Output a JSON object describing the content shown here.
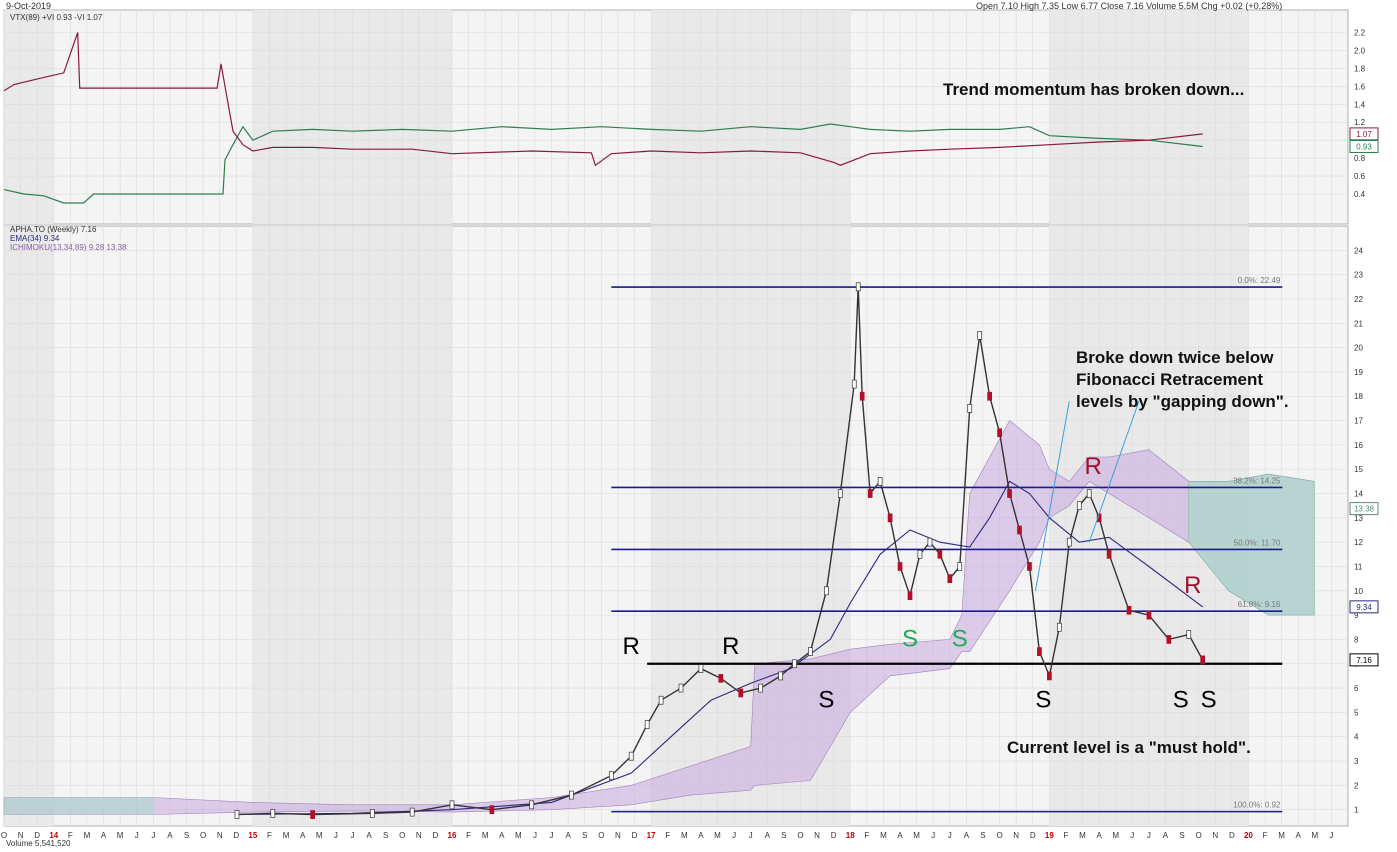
{
  "header": {
    "date": "9-Oct-2019",
    "quote": "Open 7.10  High 7.35  Low 6.77  Close 7.16  Volume 5.5M  Chg +0.02 (+0.28%)"
  },
  "vortex_legend": "VTX(89) +VI 0.93 -VI 1.07",
  "price_legend": {
    "symbol": "APHA.TO (Weekly) 7.16",
    "ema": "EMA(34) 9.34",
    "ichimoku": "ICHIMOKU(13,34,89) 9.28 13.38"
  },
  "volume_label": "Volume 5,541,520",
  "annotations": {
    "trend": "Trend momentum has broken down...",
    "broke_1": "Broke down twice below",
    "broke_2": "Fibonacci Retracement",
    "broke_3": "levels by \"gapping down\".",
    "current": "Current level is a \"must hold\"."
  },
  "chart_data": [
    {
      "type": "line",
      "name": "vortex",
      "y_ticks": [
        "2.2",
        "2.0",
        "1.8",
        "1.6",
        "1.4",
        "1.2",
        "1.0",
        "0.8",
        "0.6",
        "0.4"
      ],
      "ylim": [
        0.2,
        2.25
      ],
      "badges": [
        {
          "label": "1.07",
          "value": 1.07,
          "color": "#8b1a3a"
        },
        {
          "label": "0.93",
          "value": 0.93,
          "color": "#2e7d4f"
        }
      ],
      "series": [
        {
          "name": "+VI",
          "color": "#2e7d4f",
          "x": [
            2013.75,
            2013.85,
            2013.95,
            2014.05,
            2014.15,
            2014.2,
            2014.4,
            2014.6,
            2014.85,
            2014.86,
            2014.9,
            2014.95,
            2015.0,
            2015.1,
            2015.3,
            2015.5,
            2015.75,
            2016.0,
            2016.25,
            2016.5,
            2016.75,
            2017.0,
            2017.25,
            2017.5,
            2017.75,
            2017.9,
            2018.0,
            2018.1,
            2018.3,
            2018.5,
            2018.75,
            2018.9,
            2019.0,
            2019.25,
            2019.5,
            2019.77
          ],
          "y": [
            0.45,
            0.4,
            0.38,
            0.3,
            0.3,
            0.4,
            0.4,
            0.4,
            0.4,
            0.78,
            0.95,
            1.15,
            1.0,
            1.1,
            1.12,
            1.1,
            1.12,
            1.1,
            1.15,
            1.12,
            1.15,
            1.12,
            1.1,
            1.15,
            1.12,
            1.18,
            1.15,
            1.12,
            1.1,
            1.12,
            1.12,
            1.15,
            1.05,
            1.02,
            1.0,
            0.93
          ]
        },
        {
          "name": "-VI",
          "color": "#8b1a3a",
          "x": [
            2013.75,
            2013.8,
            2013.95,
            2014.05,
            2014.12,
            2014.13,
            2014.2,
            2014.5,
            2014.82,
            2014.84,
            2014.86,
            2014.9,
            2014.95,
            2015.0,
            2015.1,
            2015.3,
            2015.5,
            2015.8,
            2016.0,
            2016.4,
            2016.7,
            2016.72,
            2016.8,
            2017.0,
            2017.25,
            2017.5,
            2017.75,
            2017.92,
            2017.95,
            2018.1,
            2018.3,
            2018.5,
            2018.75,
            2019.0,
            2019.25,
            2019.5,
            2019.77
          ],
          "y": [
            1.55,
            1.62,
            1.7,
            1.75,
            2.2,
            1.58,
            1.58,
            1.58,
            1.58,
            1.85,
            1.6,
            1.1,
            0.95,
            0.88,
            0.92,
            0.92,
            0.9,
            0.9,
            0.85,
            0.88,
            0.86,
            0.72,
            0.85,
            0.88,
            0.86,
            0.88,
            0.86,
            0.75,
            0.72,
            0.85,
            0.88,
            0.9,
            0.92,
            0.95,
            0.98,
            1.0,
            1.07
          ]
        }
      ]
    },
    {
      "type": "line",
      "name": "price",
      "title": "APHA.TO (Weekly)",
      "y_ticks": [
        "24",
        "23",
        "22",
        "21",
        "20",
        "19",
        "18",
        "17",
        "16",
        "15",
        "14",
        "13",
        "12",
        "11",
        "10",
        "9",
        "8",
        "7",
        "6",
        "5",
        "4",
        "3",
        "2",
        "1"
      ],
      "ylim": [
        0,
        25
      ],
      "x_ticks": [
        "O",
        "N",
        "D",
        "14",
        "F",
        "M",
        "A",
        "M",
        "J",
        "J",
        "A",
        "S",
        "O",
        "N",
        "D",
        "15",
        "F",
        "M",
        "A",
        "M",
        "J",
        "J",
        "A",
        "S",
        "O",
        "N",
        "D",
        "16",
        "F",
        "M",
        "A",
        "M",
        "J",
        "J",
        "A",
        "S",
        "O",
        "N",
        "D",
        "17",
        "F",
        "M",
        "A",
        "M",
        "J",
        "J",
        "A",
        "S",
        "O",
        "N",
        "D",
        "18",
        "F",
        "M",
        "A",
        "M",
        "J",
        "J",
        "A",
        "S",
        "O",
        "N",
        "D",
        "19",
        "F",
        "M",
        "A",
        "M",
        "J",
        "J",
        "A",
        "S",
        "O",
        "N",
        "D",
        "20",
        "F",
        "M",
        "A",
        "M",
        "J"
      ],
      "x_start": 2013.75,
      "x_step": 0.08333,
      "fib_levels": [
        {
          "label": "0.0%: 22.49",
          "value": 22.49
        },
        {
          "label": "38.2%: 14.25",
          "value": 14.25
        },
        {
          "label": "50.0%: 11.70",
          "value": 11.7
        },
        {
          "label": "61.8%: 9.16",
          "value": 9.16
        },
        {
          "label": "100.0%: 0.92",
          "value": 0.92
        }
      ],
      "fib_x_range": [
        2016.8,
        2020.17
      ],
      "support_line": {
        "x": [
          2016.98,
          2020.17
        ],
        "value": 7.0
      },
      "badges": [
        {
          "label": "13.38",
          "value": 13.38,
          "color": "#5a8a7a"
        },
        {
          "label": "9.34",
          "value": 9.34,
          "color": "#2a2a80"
        },
        {
          "label": "7.16",
          "value": 7.16,
          "color": "#000000"
        }
      ],
      "series": [
        {
          "name": "APHA.TO",
          "color": "#333333",
          "x": [
            2014.92,
            2015.1,
            2015.3,
            2015.6,
            2015.8,
            2016.0,
            2016.2,
            2016.4,
            2016.6,
            2016.8,
            2016.9,
            2016.98,
            2017.05,
            2017.15,
            2017.25,
            2017.35,
            2017.45,
            2017.55,
            2017.65,
            2017.72,
            2017.8,
            2017.88,
            2017.95,
            2018.02,
            2018.04,
            2018.06,
            2018.1,
            2018.15,
            2018.2,
            2018.25,
            2018.3,
            2018.35,
            2018.4,
            2018.45,
            2018.5,
            2018.55,
            2018.6,
            2018.65,
            2018.7,
            2018.75,
            2018.8,
            2018.85,
            2018.9,
            2018.95,
            2019.0,
            2019.05,
            2019.1,
            2019.15,
            2019.2,
            2019.25,
            2019.3,
            2019.4,
            2019.5,
            2019.6,
            2019.7,
            2019.77
          ],
          "y": [
            0.8,
            0.85,
            0.8,
            0.85,
            0.9,
            1.2,
            1.0,
            1.2,
            1.6,
            2.4,
            3.2,
            4.5,
            5.5,
            6.0,
            6.8,
            6.4,
            5.8,
            6.0,
            6.5,
            7.0,
            7.5,
            10.0,
            14.0,
            18.5,
            22.5,
            18.0,
            14.0,
            14.5,
            13.0,
            11.0,
            9.8,
            11.5,
            12.0,
            11.5,
            10.5,
            11.0,
            17.5,
            20.5,
            18.0,
            16.5,
            14.0,
            12.5,
            11.0,
            7.5,
            6.5,
            8.5,
            12.0,
            13.5,
            14.0,
            13.0,
            11.5,
            9.2,
            9.0,
            8.0,
            8.2,
            7.16
          ]
        },
        {
          "name": "EMA(34)",
          "color": "#2a2a80",
          "x": [
            2014.92,
            2015.5,
            2016.0,
            2016.5,
            2016.9,
            2017.1,
            2017.3,
            2017.5,
            2017.7,
            2017.9,
            2018.0,
            2018.15,
            2018.3,
            2018.45,
            2018.6,
            2018.7,
            2018.8,
            2018.9,
            2019.0,
            2019.15,
            2019.3,
            2019.5,
            2019.77
          ],
          "y": [
            0.8,
            0.85,
            1.0,
            1.3,
            2.5,
            4.0,
            5.5,
            6.2,
            6.8,
            8.0,
            9.5,
            11.5,
            12.5,
            12.0,
            11.8,
            13.0,
            14.5,
            14.0,
            13.0,
            12.0,
            12.2,
            11.0,
            9.34
          ]
        }
      ],
      "cloud": {
        "x": [
          2013.75,
          2014.5,
          2015.0,
          2015.5,
          2016.0,
          2016.5,
          2016.9,
          2017.2,
          2017.5,
          2017.52,
          2017.8,
          2018.0,
          2018.2,
          2018.5,
          2018.56,
          2018.6,
          2018.8,
          2018.95,
          2019.0,
          2019.1,
          2019.2,
          2019.3,
          2019.5,
          2019.7,
          2019.9,
          2020.1,
          2020.33
        ],
        "upper": [
          1.5,
          1.5,
          1.3,
          1.2,
          1.2,
          1.5,
          2.0,
          2.8,
          3.6,
          7.0,
          7.2,
          7.6,
          7.8,
          8.0,
          9.0,
          14.0,
          17.0,
          16.0,
          15.0,
          14.5,
          15.5,
          15.5,
          15.8,
          14.5,
          14.5,
          14.8,
          14.5
        ],
        "lower": [
          0.8,
          0.8,
          0.9,
          0.95,
          0.9,
          1.0,
          1.2,
          1.6,
          1.8,
          2.0,
          2.2,
          5.0,
          6.5,
          6.8,
          7.5,
          7.5,
          10.0,
          12.0,
          13.0,
          13.5,
          14.5,
          14.0,
          13.0,
          12.0,
          10.0,
          9.0,
          9.0
        ]
      },
      "marks": [
        {
          "text": "R",
          "x": 2016.9,
          "y": 7.4,
          "color": "#000000"
        },
        {
          "text": "R",
          "x": 2017.4,
          "y": 7.4,
          "color": "#000000"
        },
        {
          "text": "S",
          "x": 2017.88,
          "y": 5.2,
          "color": "#000000"
        },
        {
          "text": "S",
          "x": 2018.3,
          "y": 7.7,
          "color": "#22aa55"
        },
        {
          "text": "S",
          "x": 2018.55,
          "y": 7.7,
          "color": "#22aa55"
        },
        {
          "text": "S",
          "x": 2018.97,
          "y": 5.2,
          "color": "#000000"
        },
        {
          "text": "R",
          "x": 2019.22,
          "y": 14.8,
          "color": "#a0102a"
        },
        {
          "text": "R",
          "x": 2019.72,
          "y": 9.9,
          "color": "#a0102a"
        },
        {
          "text": "S",
          "x": 2019.66,
          "y": 5.2,
          "color": "#000000"
        },
        {
          "text": "S",
          "x": 2019.8,
          "y": 5.2,
          "color": "#000000"
        }
      ]
    }
  ]
}
